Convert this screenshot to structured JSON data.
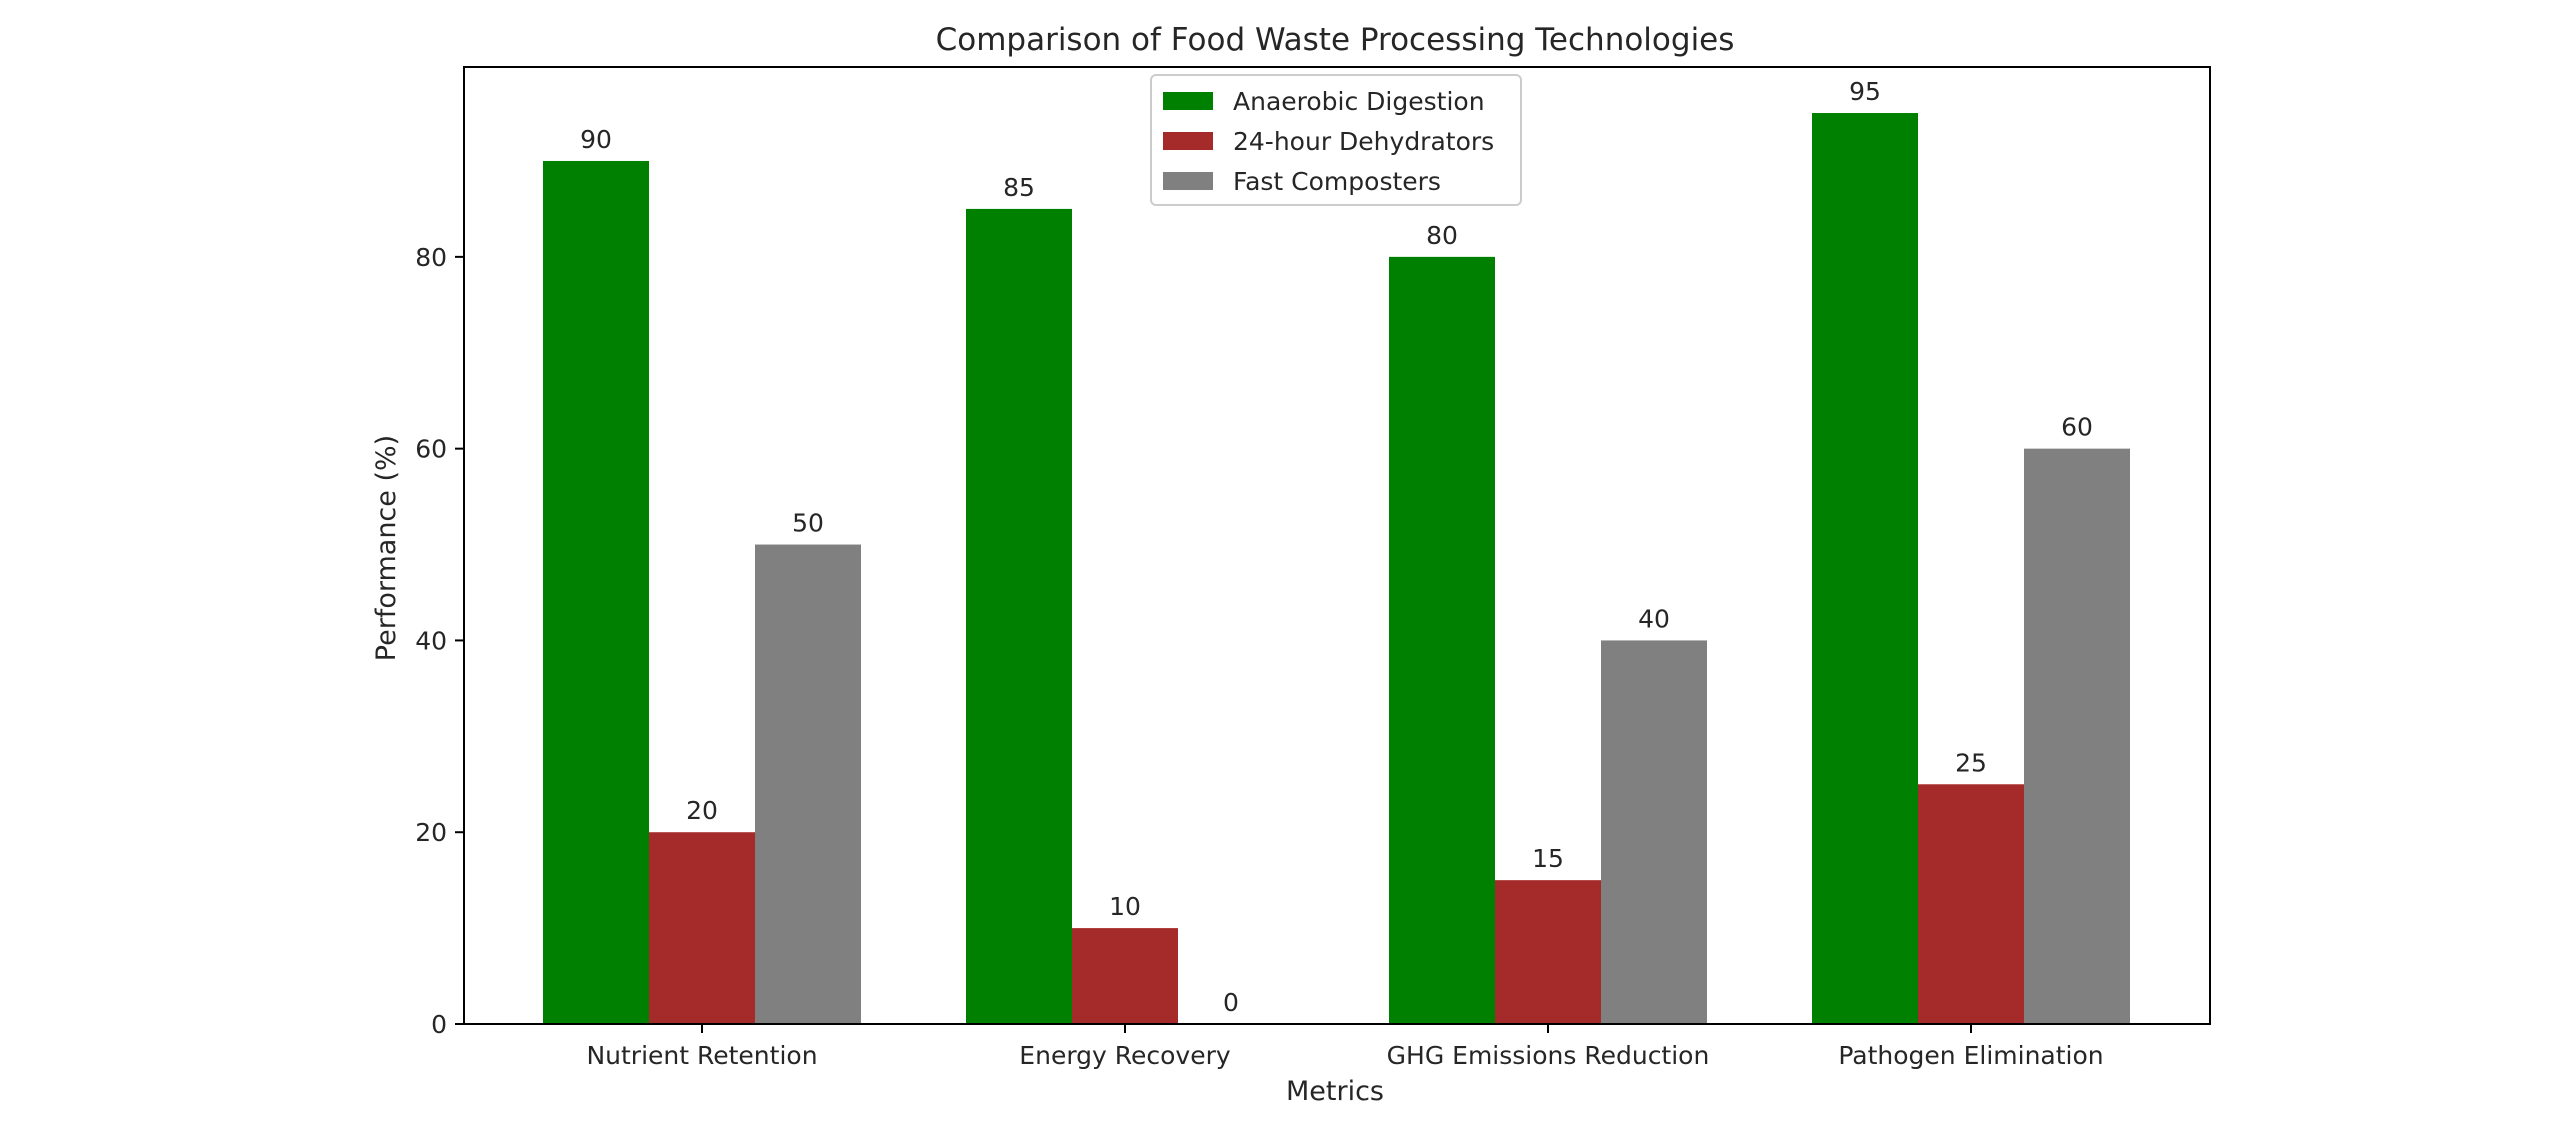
{
  "chart_data": {
    "type": "bar",
    "title": "Comparison of Food Waste Processing Technologies",
    "xlabel": "Metrics",
    "ylabel": "Performance (%)",
    "categories": [
      "Nutrient Retention",
      "Energy Recovery",
      "GHG Emissions Reduction",
      "Pathogen Elimination"
    ],
    "series": [
      {
        "name": "Anaerobic Digestion",
        "values": [
          90,
          85,
          80,
          95
        ],
        "color": "#008000"
      },
      {
        "name": "24-hour Dehydrators",
        "values": [
          20,
          10,
          15,
          25
        ],
        "color": "#a52a2a"
      },
      {
        "name": "Fast Composters",
        "values": [
          50,
          0,
          40,
          60
        ],
        "color": "#808080"
      }
    ],
    "ylim": [
      0,
      100
    ],
    "yticks": [
      0,
      20,
      40,
      60,
      80
    ],
    "grid": false,
    "legend_position": "top-center"
  }
}
